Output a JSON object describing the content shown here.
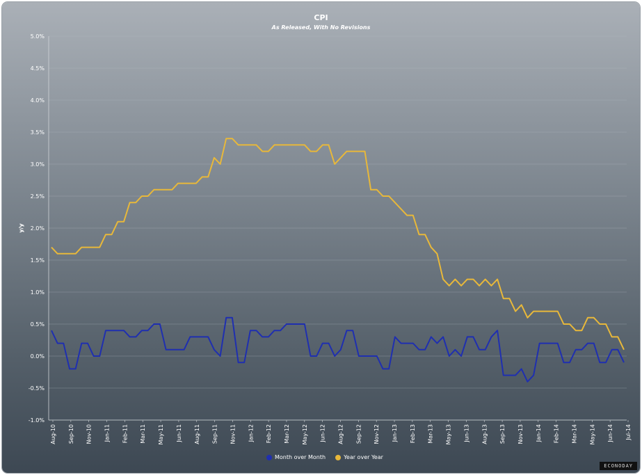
{
  "header": {
    "title": "CPI",
    "subtitle": "As Released, With No Revisions"
  },
  "legend": {
    "mom_label": "Month over Month",
    "yoy_label": "Year over Year"
  },
  "brand": "ECONODAY",
  "colors": {
    "mom": "#1f2fb0",
    "yoy": "#e8b83a",
    "grid": "#b8bec5",
    "text": "#ffffff"
  },
  "chart_data": {
    "type": "line",
    "title": "CPI",
    "subtitle": "As Released, With No Revisions",
    "ylabel": "y/y",
    "xlabel": "",
    "ylim": [
      -1.0,
      5.0
    ],
    "y_ticks": [
      "-1.0%",
      "-0.5%",
      "0.0%",
      "0.5%",
      "1.0%",
      "1.5%",
      "2.0%",
      "2.5%",
      "3.0%",
      "3.5%",
      "4.0%",
      "4.5%",
      "5.0%"
    ],
    "x_tick_labels": [
      "Aug-10",
      "Sep-10",
      "Nov-10",
      "Jan-11",
      "Feb-11",
      "Mar-11",
      "May-11",
      "Jun-11",
      "Aug-11",
      "Sep-11",
      "Nov-11",
      "Jan-12",
      "Feb-12",
      "Mar-12",
      "May-12",
      "Jun-12",
      "Aug-12",
      "Sep-12",
      "Nov-12",
      "Jan-13",
      "Feb-13",
      "Mar-13",
      "May-13",
      "Jun-13",
      "Aug-13",
      "Sep-13",
      "Nov-13",
      "Jan-14",
      "Feb-14",
      "Mar-14",
      "May-14",
      "Jun-14",
      "Jul-14"
    ],
    "grid": true,
    "legend_position": "bottom-center",
    "series": [
      {
        "name": "Year over Year",
        "values": [
          1.7,
          1.6,
          1.6,
          1.6,
          1.6,
          1.7,
          1.7,
          1.7,
          1.7,
          1.9,
          1.9,
          2.1,
          2.1,
          2.4,
          2.4,
          2.5,
          2.5,
          2.6,
          2.6,
          2.6,
          2.6,
          2.7,
          2.7,
          2.7,
          2.7,
          2.8,
          2.8,
          3.1,
          3.0,
          3.4,
          3.4,
          3.3,
          3.3,
          3.3,
          3.3,
          3.2,
          3.2,
          3.3,
          3.3,
          3.3,
          3.3,
          3.3,
          3.3,
          3.2,
          3.2,
          3.3,
          3.3,
          3.0,
          3.1,
          3.2,
          3.2,
          3.2,
          3.2,
          2.6,
          2.6,
          2.5,
          2.5,
          2.4,
          2.3,
          2.2,
          2.2,
          1.9,
          1.9,
          1.7,
          1.6,
          1.2,
          1.1,
          1.2,
          1.1,
          1.2,
          1.2,
          1.1,
          1.2,
          1.1,
          1.2,
          0.9,
          0.9,
          0.7,
          0.8,
          0.6,
          0.7,
          0.7,
          0.7,
          0.7,
          0.7,
          0.5,
          0.5,
          0.4,
          0.4,
          0.6,
          0.6,
          0.5,
          0.5,
          0.3,
          0.3,
          0.1
        ]
      },
      {
        "name": "Month over Month",
        "values": [
          0.4,
          0.2,
          0.2,
          -0.2,
          -0.2,
          0.2,
          0.2,
          0.0,
          0.0,
          0.4,
          0.4,
          0.4,
          0.4,
          0.3,
          0.3,
          0.4,
          0.4,
          0.5,
          0.5,
          0.1,
          0.1,
          0.1,
          0.1,
          0.3,
          0.3,
          0.3,
          0.3,
          0.1,
          0.0,
          0.6,
          0.6,
          -0.1,
          -0.1,
          0.4,
          0.4,
          0.3,
          0.3,
          0.4,
          0.4,
          0.5,
          0.5,
          0.5,
          0.5,
          0.0,
          0.0,
          0.2,
          0.2,
          0.0,
          0.1,
          0.4,
          0.4,
          0.0,
          0.0,
          0.0,
          0.0,
          -0.2,
          -0.2,
          0.3,
          0.2,
          0.2,
          0.2,
          0.1,
          0.1,
          0.3,
          0.2,
          0.3,
          0.0,
          0.1,
          0.0,
          0.3,
          0.3,
          0.1,
          0.1,
          0.3,
          0.4,
          -0.3,
          -0.3,
          -0.3,
          -0.2,
          -0.4,
          -0.3,
          0.2,
          0.2,
          0.2,
          0.2,
          -0.1,
          -0.1,
          0.1,
          0.1,
          0.2,
          0.2,
          -0.1,
          -0.1,
          0.1,
          0.1,
          -0.1
        ]
      }
    ]
  }
}
